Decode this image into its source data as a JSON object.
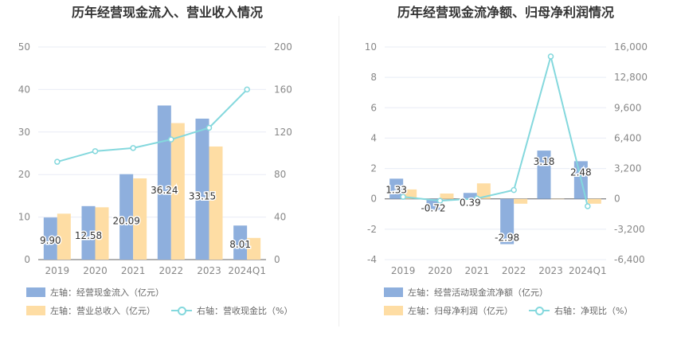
{
  "chart_data": [
    {
      "type": "bar",
      "title": "历年经营现金流入、营业收入情况",
      "categories": [
        "2019",
        "2020",
        "2021",
        "2022",
        "2023",
        "2024Q1"
      ],
      "left_axis": {
        "min": 0,
        "max": 50,
        "ticks": [
          "0",
          "10",
          "20",
          "30",
          "40",
          "50"
        ]
      },
      "right_axis": {
        "min": 0,
        "max": 200,
        "ticks": [
          "0",
          "40",
          "80",
          "120",
          "160",
          "200"
        ]
      },
      "series": [
        {
          "name": "左轴：经营现金流入（亿元）",
          "kind": "bar",
          "axis": "left",
          "color": "#8eafdd",
          "values": [
            9.9,
            12.58,
            20.09,
            36.24,
            33.15,
            8.01
          ],
          "labels": [
            "9.90",
            "12.58",
            "20.09",
            "36.24",
            "33.15",
            "8.01"
          ]
        },
        {
          "name": "左轴：营业总收入（亿元）",
          "kind": "bar",
          "axis": "left",
          "color": "#fedda4",
          "values": [
            10.8,
            12.3,
            19.1,
            32.1,
            26.6,
            5.1
          ]
        },
        {
          "name": "右轴：营收现金比（%）",
          "kind": "line",
          "axis": "right",
          "color": "#84d8dd",
          "values": [
            92,
            102,
            105,
            113,
            124,
            160
          ]
        }
      ],
      "grid": true,
      "legend": "bottom"
    },
    {
      "type": "bar",
      "title": "历年经营现金流净额、归母净利润情况",
      "categories": [
        "2019",
        "2020",
        "2021",
        "2022",
        "2023",
        "2024Q1"
      ],
      "left_axis": {
        "min": -4,
        "max": 10,
        "ticks": [
          "-4",
          "-2",
          "0",
          "2",
          "4",
          "6",
          "8",
          "10"
        ]
      },
      "right_axis": {
        "min": -6400,
        "max": 16000,
        "ticks": [
          "-6,400",
          "-3,200",
          "0",
          "3,200",
          "6,400",
          "9,600",
          "12,800",
          "16,000"
        ]
      },
      "series": [
        {
          "name": "左轴：经营活动现金流净额（亿元）",
          "kind": "bar",
          "axis": "left",
          "color": "#8eafdd",
          "values": [
            1.33,
            -0.72,
            0.39,
            -2.98,
            3.18,
            2.48
          ],
          "labels": [
            "1.33",
            "-0.72",
            "0.39",
            "-2.98",
            "3.18",
            "2.48"
          ]
        },
        {
          "name": "左轴：归母净利润（亿元）",
          "kind": "bar",
          "axis": "left",
          "color": "#fedda4",
          "values": [
            0.62,
            0.35,
            1.02,
            -0.32,
            0.0,
            -0.32
          ]
        },
        {
          "name": "右轴：净现比（%）",
          "kind": "line",
          "axis": "right",
          "color": "#84d8dd",
          "values": [
            214,
            -206,
            38,
            931,
            15000,
            -775
          ]
        }
      ],
      "grid": true,
      "legend": "bottom"
    }
  ]
}
